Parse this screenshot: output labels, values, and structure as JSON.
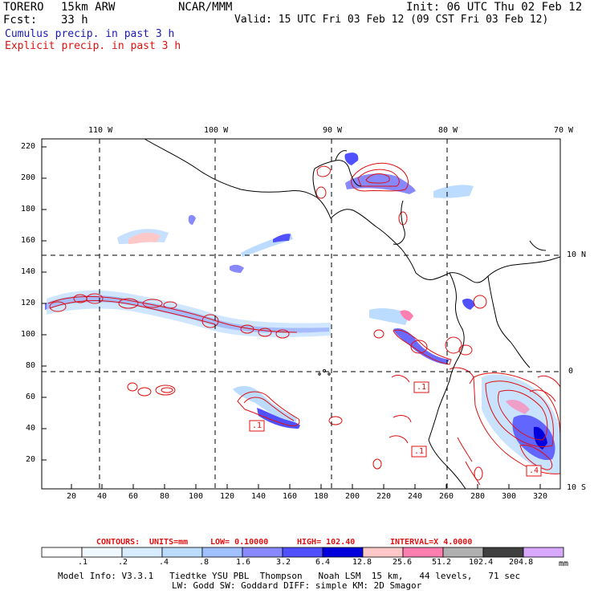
{
  "header": {
    "model": "TORERO",
    "resolution": "15km ARW",
    "org": "NCAR/MMM",
    "init": "Init: 06 UTC Thu 02 Feb 12",
    "fcst_label": "Fcst:",
    "fcst_value": "33 h",
    "valid": "Valid: 15 UTC Fri 03 Feb 12 (09 CST Fri 03 Feb 12)",
    "line_cumulus": "Cumulus precip. in past 3 h",
    "line_explicit": "Explicit precip. in past 3 h"
  },
  "colors": {
    "cumulus_text": "#1a1ab0",
    "explicit_text": "#e01010",
    "contour": "#e01010",
    "coast": "#000000"
  },
  "top_lon_labels": [
    "110 W",
    "100 W",
    "90 W",
    "80 W",
    "70 W"
  ],
  "right_lat_labels": [
    "10 N",
    "0",
    "10 S"
  ],
  "y_ticks": [
    "220",
    "200",
    "180",
    "160",
    "140",
    "120",
    "100",
    "80",
    "60",
    "40",
    "20"
  ],
  "x_ticks": [
    "20",
    "40",
    "60",
    "80",
    "100",
    "120",
    "140",
    "160",
    "180",
    "200",
    "220",
    "240",
    "260",
    "280",
    "300",
    "320"
  ],
  "contour_labels": [
    ".1",
    ".1",
    ".1",
    ".4"
  ],
  "contours_line": {
    "prefix": "CONTOURS:",
    "units": "UNITS=mm",
    "low": "LOW= 0.10000",
    "high": "HIGH= 102.40",
    "interval": "INTERVAL=X 4.0000"
  },
  "colorbar": {
    "labels": [
      ".1",
      ".2",
      ".4",
      ".8",
      "1.6",
      "3.2",
      "6.4",
      "12.8",
      "25.6",
      "51.2",
      "102.4",
      "204.8"
    ],
    "unit": "mm",
    "colors": [
      "#ffffff",
      "#f0f8ff",
      "#d8ecff",
      "#bcdcff",
      "#a0c0ff",
      "#8888ff",
      "#5050ff",
      "#0000dd",
      "#ffc8c8",
      "#ff80b0",
      "#b0b0b0",
      "#404040",
      "#d8a8ff"
    ]
  },
  "footer": {
    "line1": "Model Info: V3.3.1   Tiedtke YSU PBL  Thompson   Noah LSM  15 km,   44 levels,   71 sec",
    "line2": "LW: Godd SW: Goddard DIFF: simple KM: 2D Smagor"
  }
}
